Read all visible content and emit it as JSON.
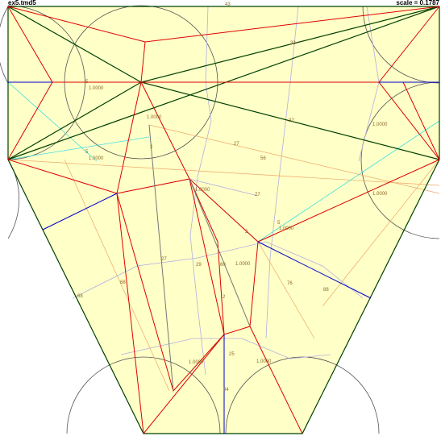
{
  "header": {
    "file": "ex5.tmd5",
    "scale": "scale = 0.1787"
  },
  "labels": [
    "43",
    "5",
    "1.0000",
    "1.0000",
    "5",
    "1.0000",
    "56",
    "27",
    "1.0000",
    "1.0000",
    "1.0000",
    "5",
    "1.0000",
    "1.0000",
    "29",
    "27",
    "60",
    "76",
    "88",
    "68",
    "68",
    "2",
    "25",
    "1.0000",
    "1.0000",
    "94",
    "2",
    "2",
    "33",
    "32",
    "27"
  ]
}
